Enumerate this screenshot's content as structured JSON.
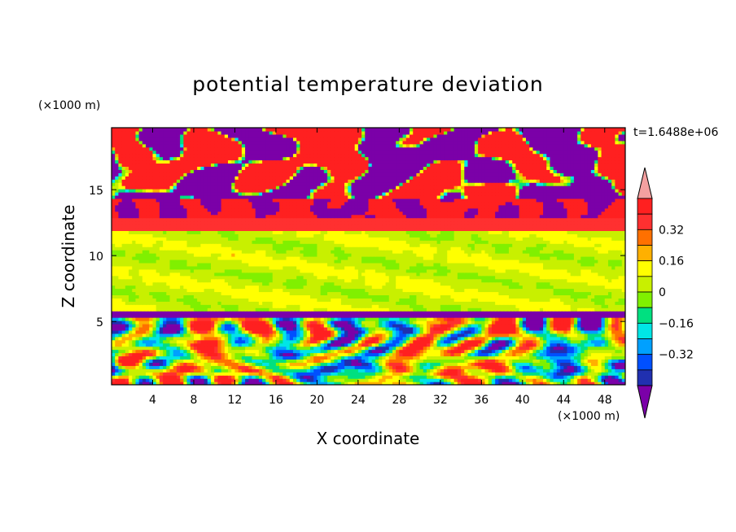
{
  "chart_data": {
    "type": "heatmap",
    "title": "potential temperature deviation",
    "xlabel": "X coordinate",
    "ylabel": "Z coordinate",
    "x_unit": "(×1000 m)",
    "y_unit": "(×1000 m)",
    "time_label": "t=1.6488e+06",
    "xlim": [
      0,
      50
    ],
    "ylim": [
      0.2,
      19.7
    ],
    "x_ticks": [
      "4",
      "8",
      "12",
      "16",
      "20",
      "24",
      "28",
      "32",
      "36",
      "40",
      "44",
      "48"
    ],
    "y_ticks": [
      "5",
      "10",
      "15"
    ],
    "colorbar": {
      "levels": [
        -0.48,
        -0.4,
        -0.32,
        -0.24,
        -0.16,
        -0.08,
        0,
        0.08,
        0.16,
        0.24,
        0.32,
        0.4
      ],
      "colors": [
        "#7b00a8",
        "#2030b0",
        "#0050ff",
        "#00a0ff",
        "#00e6e6",
        "#00e080",
        "#80f000",
        "#c8f000",
        "#ffff00",
        "#ffb000",
        "#ff7000",
        "#ff3030",
        "#ff2020",
        "#f4a0a0"
      ],
      "tick_labels": [
        "0.32",
        "0.16",
        "0",
        "−0.16",
        "−0.32"
      ]
    },
    "grid": false
  }
}
